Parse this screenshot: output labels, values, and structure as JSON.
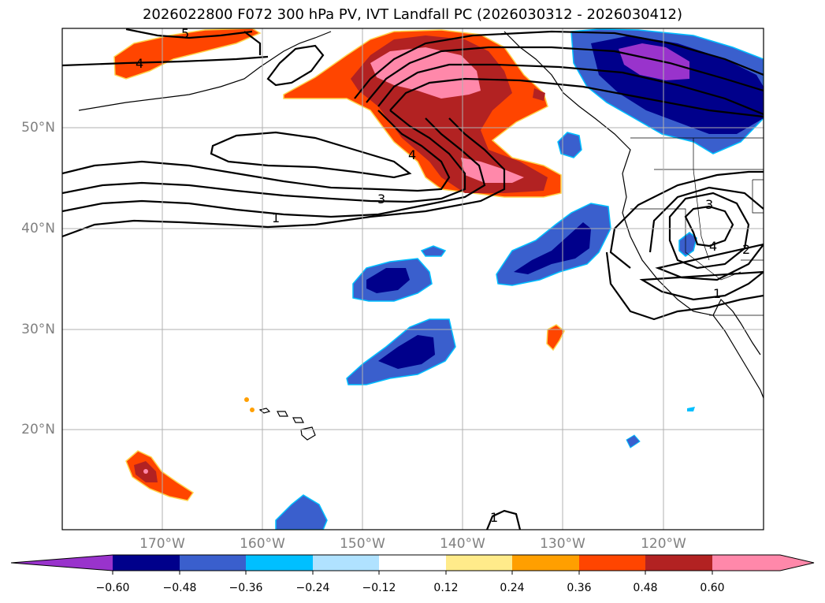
{
  "title": "2026022800 F072 300 hPa PV, IVT Landfall PC (2026030312 - 2026030412)",
  "lat_labels": [
    "50°N",
    "40°N",
    "30°N",
    "20°N"
  ],
  "lon_labels": [
    "170°W",
    "160°W",
    "150°W",
    "140°W",
    "130°W",
    "120°W"
  ],
  "colorbar": {
    "ticks": [
      "−0.60",
      "−0.48",
      "−0.36",
      "−0.24",
      "−0.12",
      "0.12",
      "0.24",
      "0.36",
      "0.48",
      "0.60"
    ],
    "colors": [
      "#9933cc",
      "#00008b",
      "#3a5fcd",
      "#00bfff",
      "#b0e2ff",
      "#ffffff",
      "#ffeb8a",
      "#ff9f00",
      "#ff4500",
      "#b22222",
      "#ff88aa",
      "#ff88aa"
    ]
  },
  "contour_labels": [
    "5",
    "4",
    "4",
    "3",
    "1",
    "3",
    "4",
    "2",
    "1",
    "1"
  ],
  "colors": {
    "positive_high": "#ff88aa",
    "positive_mid": "#b22222",
    "positive_low": "#ff4500",
    "negative_low": "#3a5fcd",
    "negative_mid": "#00008b",
    "negative_high": "#9933cc",
    "grid": "#b0b0b0",
    "tick_text": "#808080"
  }
}
